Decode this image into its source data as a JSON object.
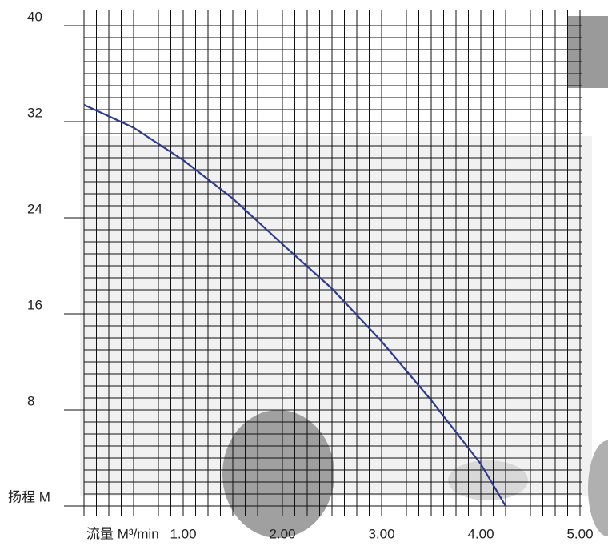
{
  "chart_data": {
    "type": "line",
    "x_label": "流量 M³/min",
    "y_label": "扬程 M",
    "x": [
      0,
      0.5,
      1,
      1.5,
      2,
      2.5,
      3,
      3.5,
      4,
      4.25
    ],
    "series": [
      {
        "color": "#2b3a8f",
        "values": [
          33.4,
          31.5,
          28.8,
          25.6,
          21.8,
          18.1,
          13.7,
          8.8,
          3.5,
          0
        ]
      }
    ],
    "xlim": [
      0,
      5
    ],
    "ylim": [
      0,
      40
    ],
    "xticks": [
      {
        "value": 1,
        "label": "1.00"
      },
      {
        "value": 2,
        "label": "2.00"
      },
      {
        "value": 3,
        "label": "3.00"
      },
      {
        "value": 4,
        "label": "4.00"
      },
      {
        "value": 5,
        "label": "5.00"
      }
    ],
    "yticks": [
      8,
      16,
      24,
      32,
      40
    ],
    "grid": true,
    "grid_x_step": 0.125,
    "grid_y_step": 1
  }
}
